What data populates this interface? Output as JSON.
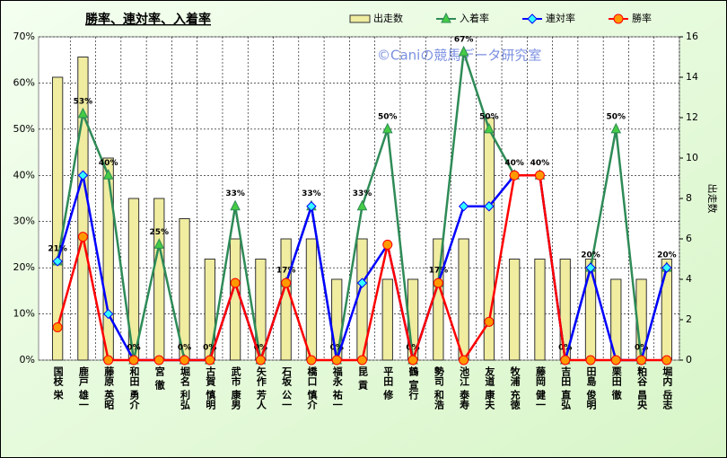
{
  "chart_data": {
    "type": "bar-line",
    "title": "勝率、連対率、入着率",
    "watermark": "©Caniの競馬データ研究室",
    "y2_label": "出走数",
    "categories": [
      "国枝 栄",
      "鹿戸 雄一",
      "藤原 英昭",
      "和田 勇介",
      "宮 徹",
      "堀名 利弘",
      "古賀 慎明",
      "武市 康男",
      "矢作 芳人",
      "石坂 公一",
      "橋口 慎介",
      "福永 祐一",
      "昆 貢",
      "平田 修",
      "鶴 宣行",
      "勢司 和浩",
      "池江 泰寿",
      "友道 康夫",
      "牧浦 充徳",
      "藤岡 健一",
      "吉田 直弘",
      "田島 俊明",
      "栗田 徹",
      "粕谷 昌央",
      "堀内 岳志"
    ],
    "series": [
      {
        "name": "出走数",
        "kind": "bar",
        "axis": "y2",
        "color": "#f0eca0",
        "values": [
          14,
          15,
          10,
          8,
          8,
          7,
          5,
          6,
          5,
          6,
          6,
          4,
          6,
          4,
          4,
          6,
          6,
          12,
          5,
          5,
          5,
          5,
          4,
          4,
          5
        ]
      },
      {
        "name": "入着率",
        "kind": "line",
        "marker": "triangle",
        "color": "#2e8b57",
        "values": [
          21.4,
          53.3,
          40,
          0,
          25,
          0,
          0,
          33.3,
          0,
          16.7,
          33.3,
          0,
          33.3,
          50,
          0,
          16.7,
          66.7,
          50,
          40,
          40,
          0,
          20,
          50,
          0,
          20
        ],
        "value_labels": [
          "21%",
          "53%",
          "40%",
          "0%",
          "25%",
          "0%",
          "0%",
          "33%",
          "0%",
          "17%",
          "33%",
          "0%",
          "33%",
          "50%",
          "0%",
          "17%",
          "67%",
          "50%",
          "40%",
          "40%",
          "0%",
          "20%",
          "50%",
          "0%",
          "20%"
        ]
      },
      {
        "name": "連対率",
        "kind": "line",
        "marker": "diamond",
        "color": "#0000ff",
        "values": [
          21.4,
          40,
          10,
          0,
          0,
          0,
          0,
          16.7,
          0,
          16.7,
          33.3,
          0,
          16.7,
          25,
          0,
          16.7,
          33.3,
          33.3,
          40,
          40,
          0,
          20,
          0,
          0,
          20
        ]
      },
      {
        "name": "勝率",
        "kind": "line",
        "marker": "circle",
        "color": "#ff0000",
        "values": [
          7.1,
          26.7,
          0,
          0,
          0,
          0,
          0,
          16.7,
          0,
          16.7,
          0,
          0,
          0,
          25,
          0,
          16.7,
          0,
          8.3,
          40,
          40,
          0,
          0,
          0,
          0,
          0
        ]
      }
    ],
    "ylim": [
      0,
      70
    ],
    "yticks": [
      {
        "value": 0,
        "label": "0%"
      },
      {
        "value": 10,
        "label": "10%"
      },
      {
        "value": 20,
        "label": "20%"
      },
      {
        "value": 30,
        "label": "30%"
      },
      {
        "value": 40,
        "label": "40%"
      },
      {
        "value": 50,
        "label": "50%"
      },
      {
        "value": 60,
        "label": "60%"
      },
      {
        "value": 70,
        "label": "70%"
      }
    ],
    "y2lim": [
      0,
      16
    ],
    "y2ticks": [
      0,
      2,
      4,
      6,
      8,
      10,
      12,
      14,
      16
    ],
    "grid": true
  }
}
